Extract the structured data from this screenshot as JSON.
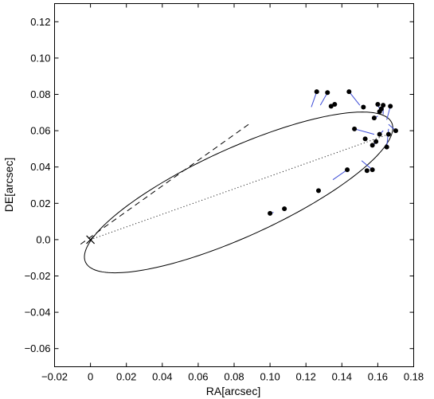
{
  "chart_data": {
    "type": "scatter",
    "title": "",
    "xlabel": "RA[arcsec]",
    "ylabel": "DE[arcsec]",
    "xlim": [
      -0.02,
      0.18
    ],
    "ylim": [
      -0.07,
      0.13
    ],
    "xticks": [
      -0.02,
      0.0,
      0.02,
      0.04,
      0.06,
      0.08,
      0.1,
      0.12,
      0.14,
      0.16,
      0.18
    ],
    "xtick_labels": [
      "−0.02",
      "0",
      "0.02",
      "0.04",
      "0.06",
      "0.08",
      "0.10",
      "0.12",
      "0.14",
      "0.16",
      "0.18"
    ],
    "yticks": [
      -0.06,
      -0.04,
      -0.02,
      0.0,
      0.02,
      0.04,
      0.06,
      0.08,
      0.1,
      0.12
    ],
    "ytick_labels": [
      "−0.06",
      "−0.04",
      "−0.02",
      "0.0",
      "0.02",
      "0.04",
      "0.06",
      "0.08",
      "0.10",
      "0.12"
    ],
    "grid": false,
    "focus_marker": {
      "x": 0.0,
      "y": 0.0,
      "symbol": "x"
    },
    "orbit_ellipse": {
      "center": [
        0.0825,
        0.026
      ],
      "semi_major": 0.0935,
      "semi_minor": 0.0243,
      "angle_deg": 24.2
    },
    "line_of_nodes": {
      "x": [
        -0.0055,
        0.0895
      ],
      "y": [
        -0.0025,
        0.0645
      ],
      "style": "dashed"
    },
    "apsides_line": {
      "x": [
        0.0,
        0.1645
      ],
      "y": [
        0.0,
        0.0575
      ],
      "style": "dotted"
    },
    "observations": {
      "x": [
        0.1,
        0.108,
        0.127,
        0.143,
        0.154,
        0.157,
        0.147,
        0.153,
        0.157,
        0.159,
        0.161,
        0.165,
        0.166,
        0.17,
        0.167,
        0.163,
        0.16,
        0.162,
        0.161,
        0.144,
        0.132,
        0.126,
        0.136,
        0.134,
        0.152,
        0.158
      ],
      "y": [
        0.0145,
        0.017,
        0.027,
        0.0385,
        0.038,
        0.0385,
        0.061,
        0.0555,
        0.052,
        0.054,
        0.058,
        0.051,
        0.058,
        0.06,
        0.0735,
        0.074,
        0.0745,
        0.072,
        0.0705,
        0.0815,
        0.081,
        0.0815,
        0.0745,
        0.0735,
        0.073,
        0.067
      ]
    },
    "residuals": {
      "x1": [
        0.1,
        0.108,
        0.143,
        0.157,
        0.147,
        0.157,
        0.161,
        0.165,
        0.17,
        0.167,
        0.163,
        0.16,
        0.144,
        0.132,
        0.126,
        0.152,
        0.158
      ],
      "y1": [
        0.0145,
        0.017,
        0.0385,
        0.0385,
        0.061,
        0.052,
        0.058,
        0.051,
        0.06,
        0.0735,
        0.074,
        0.0745,
        0.0815,
        0.081,
        0.0815,
        0.073,
        0.067
      ],
      "x2": [
        0.102,
        0.107,
        0.135,
        0.151,
        0.158,
        0.16,
        0.163,
        0.166,
        0.166,
        0.165,
        0.163,
        0.161,
        0.15,
        0.128,
        0.123,
        0.151,
        0.16
      ],
      "y2": [
        0.015,
        0.0165,
        0.033,
        0.0435,
        0.058,
        0.054,
        0.06,
        0.061,
        0.0635,
        0.066,
        0.069,
        0.072,
        0.074,
        0.074,
        0.073,
        0.074,
        0.068
      ]
    },
    "colors": {
      "residual": "#3b4bd6",
      "point": "#000000",
      "orbit": "#000000"
    }
  }
}
